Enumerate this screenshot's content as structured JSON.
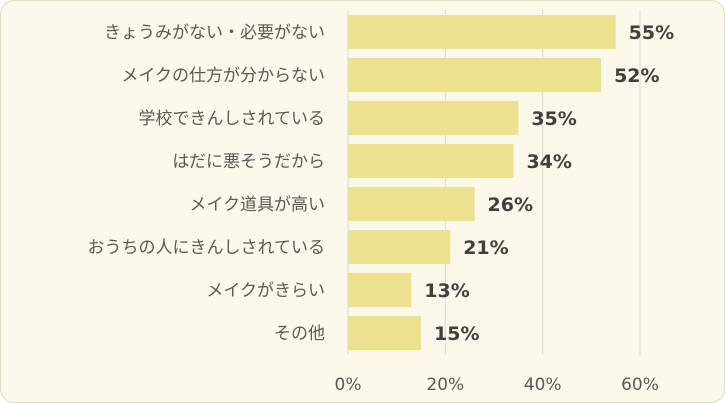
{
  "chart_data": {
    "type": "bar",
    "orientation": "horizontal",
    "categories": [
      "きょうみがない・必要がない",
      "メイクの仕方が分からない",
      "学校できんしされている",
      "はだに悪そうだから",
      "メイク道具が高い",
      "おうちの人にきんしされている",
      "メイクがきらい",
      "その他"
    ],
    "values": [
      55,
      52,
      35,
      34,
      26,
      21,
      13,
      15
    ],
    "data_labels": [
      "55%",
      "52%",
      "35%",
      "34%",
      "26%",
      "21%",
      "13%",
      "15%"
    ],
    "x_ticks": [
      "0%",
      "20%",
      "40%",
      "60%"
    ],
    "xlim": [
      0,
      60
    ],
    "grid": true,
    "bar_color": "#ebe18f",
    "grid_color": "#d9d9d9"
  }
}
